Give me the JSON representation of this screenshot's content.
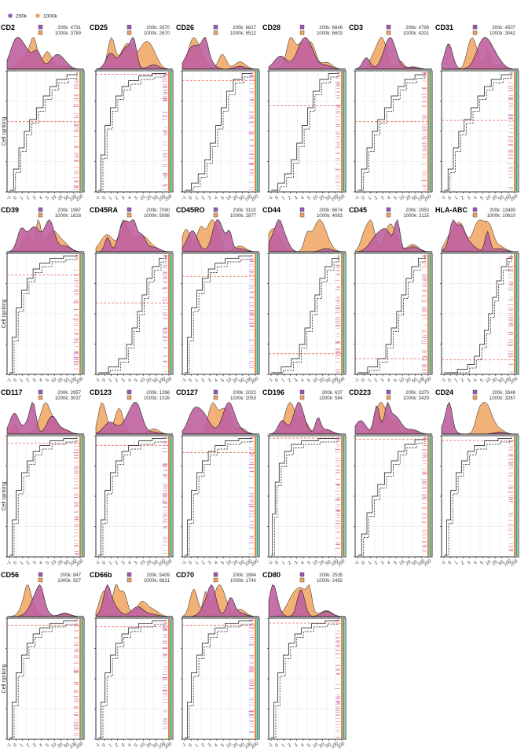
{
  "legend": {
    "items": [
      {
        "label": "200k",
        "color": "#9b59b6"
      },
      {
        "label": "1000k",
        "color": "#f0a35e"
      }
    ]
  },
  "colors": {
    "density_fill": "#c060a0",
    "density_fill_200k": "#9b59b6",
    "density_fill_1000k": "#f0a35e",
    "ref_line": "#e8665a",
    "grid": "#e5e5e5",
    "rug_green": "#2a9d70",
    "rug_orange": "#e07020",
    "rug_pink": "#d070b0"
  },
  "y_axis_label": "Cell ranking",
  "x_tick_labels": [
    "-1",
    "0",
    "1",
    "2",
    "3",
    "4",
    "5",
    "10",
    "20",
    "50",
    "100",
    "200"
  ],
  "chart_data": [
    {
      "type": "line",
      "title": "CD2",
      "counts": {
        "200k": 4731,
        "1000k": 3789
      },
      "ref_y": 0.58,
      "shape": "mid",
      "density": "CD2"
    },
    {
      "type": "line",
      "title": "CD25",
      "counts": {
        "200k": 2870,
        "1000k": 2670
      },
      "ref_y": 0.97,
      "shape": "fast",
      "density": "CD25"
    },
    {
      "type": "line",
      "title": "CD26",
      "counts": {
        "200k": 6817,
        "1000k": 6512
      },
      "ref_y": 0.92,
      "shape": "slow",
      "density": "CD26"
    },
    {
      "type": "line",
      "title": "CD28",
      "counts": {
        "200k": 6846,
        "1000k": 6603
      },
      "ref_y": 0.71,
      "shape": "slow",
      "density": "CD28"
    },
    {
      "type": "line",
      "title": "CD3",
      "counts": {
        "200k": 4798,
        "1000k": 4201
      },
      "ref_y": 0.58,
      "shape": "mid",
      "density": "CD3"
    },
    {
      "type": "line",
      "title": "CD31",
      "counts": {
        "200k": 4507,
        "1000k": 3042
      },
      "ref_y": 0.59,
      "shape": "mid",
      "density": "CD31"
    },
    {
      "type": "line",
      "title": "CD39",
      "counts": {
        "200k": 1987,
        "1000k": 1818
      },
      "ref_y": 0.82,
      "shape": "fast",
      "density": "CD39"
    },
    {
      "type": "line",
      "title": "CD45RA",
      "counts": {
        "200k": 7090,
        "1000k": 5088
      },
      "ref_y": 0.59,
      "shape": "late",
      "density": "CD45RA"
    },
    {
      "type": "line",
      "title": "CD45RO",
      "counts": {
        "200k": 3102,
        "1000k": 2877
      },
      "ref_y": 0.81,
      "shape": "fast",
      "density": "CD45RO"
    },
    {
      "type": "line",
      "title": "CD44",
      "counts": {
        "200k": 6674,
        "1000k": 4083
      },
      "ref_y": 0.17,
      "shape": "late",
      "density": "CD44"
    },
    {
      "type": "line",
      "title": "CD45",
      "counts": {
        "200k": 2950,
        "1000k": 2115
      },
      "ref_y": 0.13,
      "shape": "late",
      "density": "CD45"
    },
    {
      "type": "line",
      "title": "HLA-ABC",
      "counts": {
        "200k": 13490,
        "1000k": 10610
      },
      "ref_y": 0.12,
      "shape": "vlate",
      "density": "HLA"
    },
    {
      "type": "line",
      "title": "CD117",
      "counts": {
        "200k": 2957,
        "1000k": 3037
      },
      "ref_y": 0.94,
      "shape": "fast",
      "density": "CD117"
    },
    {
      "type": "line",
      "title": "CD123",
      "counts": {
        "200k": 1266,
        "1000k": 1026
      },
      "ref_y": 0.92,
      "shape": "fast",
      "density": "CD123"
    },
    {
      "type": "line",
      "title": "CD127",
      "counts": {
        "200k": 2022,
        "1000k": 2053
      },
      "ref_y": 0.86,
      "shape": "fast",
      "density": "CD127"
    },
    {
      "type": "line",
      "title": "CD196",
      "counts": {
        "200k": 637,
        "1000k": 584
      },
      "ref_y": 0.98,
      "shape": "vfast",
      "density": "CD196"
    },
    {
      "type": "line",
      "title": "CD223",
      "counts": {
        "200k": 3370,
        "1000k": 3429
      },
      "ref_y": 0.97,
      "shape": "mid",
      "density": "CD223"
    },
    {
      "type": "line",
      "title": "CD24",
      "counts": {
        "200k": 3346,
        "1000k": 3267
      },
      "ref_y": 0.96,
      "shape": "fast",
      "density": "CD24"
    },
    {
      "type": "line",
      "title": "CD56",
      "counts": {
        "200k": 847,
        "1000k": 927
      },
      "ref_y": 0.94,
      "shape": "fast",
      "density": "CD56"
    },
    {
      "type": "line",
      "title": "CD66b",
      "counts": {
        "200k": 5409,
        "1000k": 6821
      },
      "ref_y": 0.93,
      "shape": "fast",
      "density": "CD66b"
    },
    {
      "type": "line",
      "title": "CD70",
      "counts": {
        "200k": 1884,
        "1000k": 1740
      },
      "ref_y": 0.94,
      "shape": "fast",
      "density": "CD70"
    },
    {
      "type": "line",
      "title": "CD80",
      "counts": {
        "200k": 2535,
        "1000k": 2482
      },
      "ref_y": 0.96,
      "shape": "fast",
      "density": "CD80"
    }
  ]
}
